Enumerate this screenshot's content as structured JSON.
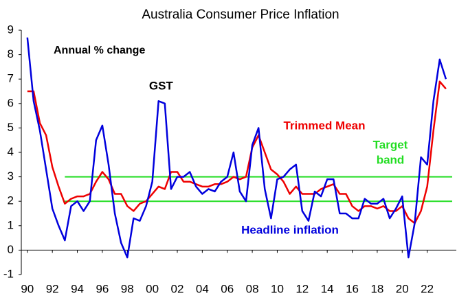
{
  "chart_data": {
    "type": "line",
    "title": "Australia Consumer Price Inflation",
    "subtitle": "Annual % change",
    "x": [
      1990,
      1990.5,
      1991,
      1991.5,
      1992,
      1992.5,
      1993,
      1993.5,
      1994,
      1994.5,
      1995,
      1995.5,
      1996,
      1996.5,
      1997,
      1997.5,
      1998,
      1998.5,
      1999,
      1999.5,
      2000,
      2000.5,
      2001,
      2001.5,
      2002,
      2002.5,
      2003,
      2003.5,
      2004,
      2004.5,
      2005,
      2005.5,
      2006,
      2006.5,
      2007,
      2007.5,
      2008,
      2008.5,
      2009,
      2009.5,
      2010,
      2010.5,
      2011,
      2011.5,
      2012,
      2012.5,
      2013,
      2013.5,
      2014,
      2014.5,
      2015,
      2015.5,
      2016,
      2016.5,
      2017,
      2017.5,
      2018,
      2018.5,
      2019,
      2019.5,
      2020,
      2020.5,
      2021,
      2021.5,
      2022,
      2022.5,
      2023,
      2023.5
    ],
    "series": [
      {
        "name": "Headline inflation",
        "color": "#0000dd",
        "values": [
          8.7,
          6.1,
          4.9,
          3.3,
          1.7,
          1.0,
          0.4,
          1.8,
          2.0,
          1.6,
          2.0,
          4.5,
          5.1,
          3.5,
          1.5,
          0.3,
          -0.3,
          1.3,
          1.2,
          1.8,
          2.8,
          6.1,
          6.0,
          2.5,
          3.0,
          3.0,
          3.2,
          2.6,
          2.3,
          2.5,
          2.4,
          2.8,
          3.0,
          4.0,
          2.4,
          2.0,
          4.3,
          5.0,
          2.5,
          1.3,
          2.9,
          3.0,
          3.3,
          3.5,
          1.6,
          1.2,
          2.4,
          2.2,
          2.9,
          2.9,
          1.5,
          1.5,
          1.3,
          1.3,
          2.1,
          1.9,
          1.9,
          2.1,
          1.3,
          1.7,
          2.2,
          -0.3,
          1.1,
          3.8,
          3.5,
          6.1,
          7.8,
          7.0
        ]
      },
      {
        "name": "Trimmed Mean",
        "color": "#ee0000",
        "values": [
          6.5,
          6.5,
          5.2,
          4.7,
          3.4,
          2.6,
          1.9,
          2.1,
          2.2,
          2.2,
          2.3,
          2.8,
          3.2,
          2.9,
          2.3,
          2.3,
          1.8,
          1.6,
          1.9,
          2.0,
          2.3,
          2.6,
          2.5,
          3.2,
          3.2,
          2.8,
          2.8,
          2.7,
          2.6,
          2.6,
          2.7,
          2.7,
          2.8,
          3.0,
          2.9,
          3.0,
          4.2,
          4.7,
          4.0,
          3.3,
          3.1,
          2.8,
          2.3,
          2.6,
          2.3,
          2.3,
          2.3,
          2.5,
          2.6,
          2.7,
          2.3,
          2.3,
          1.8,
          1.6,
          1.8,
          1.8,
          1.7,
          1.8,
          1.6,
          1.6,
          1.8,
          1.3,
          1.1,
          1.6,
          2.6,
          4.9,
          6.9,
          6.6
        ]
      }
    ],
    "target_band": {
      "label_lines": [
        "Target",
        "band"
      ],
      "color": "#22dd22",
      "values": [
        2,
        3
      ],
      "x": [
        1993,
        2024
      ]
    },
    "annotations": [
      {
        "text": "GST",
        "x": 2000.7,
        "y": 6.7
      }
    ],
    "xlim": [
      1989.9,
      2024.0
    ],
    "xticks": [
      {
        "value": 1990,
        "label": "90"
      },
      {
        "value": 1992,
        "label": "92"
      },
      {
        "value": 1994,
        "label": "94"
      },
      {
        "value": 1996,
        "label": "96"
      },
      {
        "value": 1998,
        "label": "98"
      },
      {
        "value": 2000,
        "label": "00"
      },
      {
        "value": 2002,
        "label": "02"
      },
      {
        "value": 2004,
        "label": "04"
      },
      {
        "value": 2006,
        "label": "06"
      },
      {
        "value": 2008,
        "label": "08"
      },
      {
        "value": 2010,
        "label": "10"
      },
      {
        "value": 2012,
        "label": "12"
      },
      {
        "value": 2014,
        "label": "14"
      },
      {
        "value": 2016,
        "label": "16"
      },
      {
        "value": 2018,
        "label": "18"
      },
      {
        "value": 2020,
        "label": "20"
      },
      {
        "value": 2022,
        "label": "22"
      }
    ],
    "ylim": [
      -1,
      9
    ],
    "yticks": [
      -1,
      0,
      1,
      2,
      3,
      4,
      5,
      6,
      7,
      8,
      9
    ]
  }
}
